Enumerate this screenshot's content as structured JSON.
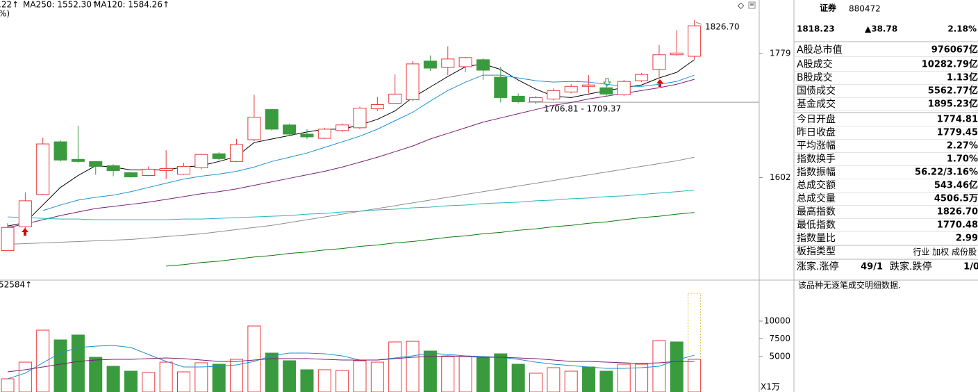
{
  "chart_data": [
    {
      "type": "candlestick",
      "legend": [
        {
          "text": ".22↑",
          "color": "#000000"
        },
        {
          "text": "MA250: 1552.30↑",
          "color": "#0a7a0a"
        },
        {
          "text": "MA120: 1584.26↑",
          "color": "#20b8c0"
        },
        {
          "text": "%)",
          "color": "#e8373b"
        }
      ],
      "categories": [
        null,
        null,
        null,
        null,
        null,
        null,
        null,
        null,
        null,
        null,
        null,
        null,
        null,
        null,
        null,
        null,
        null,
        null,
        null,
        null,
        null,
        null,
        null,
        null,
        null,
        null,
        null,
        null,
        null,
        null,
        null,
        null,
        null,
        null,
        null,
        null,
        null,
        null,
        null,
        null
      ],
      "open": [
        1498,
        1532,
        1578,
        1653,
        1628,
        1625,
        1619,
        1609,
        1605,
        1612,
        1607,
        1616,
        1636,
        1625,
        1656,
        1699,
        1677,
        1664,
        1658,
        1669,
        1673,
        1700,
        1708,
        1713,
        1768,
        1759,
        1760,
        1770,
        1745,
        1718,
        1710,
        1714,
        1724,
        1732,
        1730,
        1720,
        1740,
        1756,
        1777,
        1774.81
      ],
      "close": [
        1531,
        1569,
        1650,
        1627,
        1625,
        1618,
        1612,
        1603,
        1614,
        1615,
        1618,
        1635,
        1629,
        1649,
        1688,
        1671,
        1664,
        1660,
        1671,
        1677,
        1701,
        1706,
        1721,
        1764,
        1758,
        1771,
        1773,
        1755,
        1716,
        1710,
        1716,
        1726,
        1732,
        1734,
        1721,
        1739,
        1749,
        1777,
        1779.45,
        1818.23
      ],
      "high": [
        1537,
        1581,
        1659,
        1655,
        1676,
        1625,
        1621,
        1610,
        1618,
        1641,
        1623,
        1636,
        1638,
        1657,
        1720,
        1699,
        1679,
        1671,
        1673,
        1679,
        1703,
        1717,
        1749,
        1768,
        1776,
        1789,
        1774,
        1772,
        1760,
        1722,
        1718,
        1729,
        1735,
        1748,
        1736,
        1741,
        1751,
        1791,
        1812,
        1826.7
      ],
      "low": [
        1498,
        1529,
        1577,
        1625,
        1623,
        1606,
        1604,
        1602,
        1604,
        1600,
        1606,
        1614,
        1627,
        1624,
        1654,
        1669,
        1661,
        1657,
        1657,
        1667,
        1671,
        1697,
        1707,
        1711,
        1754,
        1748,
        1752,
        1741,
        1709,
        1708,
        1706.81,
        1712,
        1722,
        1722,
        1718,
        1718,
        1738,
        1743,
        1776,
        1770.48
      ],
      "up_color": "#e8373b",
      "down_color": "#3a9a3e",
      "lines": [
        {
          "color": "#000000",
          "values": [
            1533,
            1538,
            1563,
            1588,
            1605,
            1619,
            1617,
            1613,
            1613,
            1613,
            1617,
            1619,
            1625,
            1632,
            1652,
            1657,
            1662,
            1667,
            1671,
            1671,
            1677,
            1685,
            1697,
            1716,
            1731,
            1746,
            1760,
            1764,
            1756,
            1741,
            1728,
            1718,
            1716,
            1721,
            1726,
            1730,
            1734,
            1744,
            1752,
            1770
          ]
        },
        {
          "color": "#1e8fd0",
          "values": [
            null,
            null,
            1555,
            1563,
            1570,
            1574,
            1577,
            1582,
            1588,
            1594,
            1600,
            1604,
            1607,
            1611,
            1617,
            1625,
            1631,
            1637,
            1645,
            1653,
            1661,
            1671,
            1683,
            1695,
            1711,
            1726,
            1738,
            1748,
            1748,
            1744,
            1740,
            1738,
            1739,
            1738,
            1735,
            1732,
            1732,
            1735,
            1739,
            1748
          ]
        },
        {
          "color": "#7a1d7a",
          "values": [
            1531,
            1536,
            1542,
            1548,
            1553,
            1558,
            1561,
            1564,
            1567,
            1571,
            1575,
            1579,
            1582,
            1586,
            1591,
            1596,
            1601,
            1606,
            1611,
            1617,
            1624,
            1631,
            1639,
            1647,
            1657,
            1665,
            1673,
            1681,
            1687,
            1693,
            1699,
            1705,
            1709,
            1714,
            1718,
            1722,
            1726,
            1730,
            1735,
            1742
          ]
        },
        {
          "color": "#8c8c8c",
          "values": [
            1507,
            1508,
            1509,
            1510,
            1511,
            1512,
            1513,
            1514,
            1516,
            1518,
            1520,
            1522,
            1525,
            1528,
            1531,
            1534,
            1538,
            1542,
            1546,
            1550,
            1554,
            1558,
            1562,
            1566,
            1570,
            1574,
            1578,
            1582,
            1586,
            1590,
            1594,
            1598,
            1602,
            1606,
            1610,
            1614,
            1618,
            1622,
            1626,
            1631
          ]
        },
        {
          "color": "#20b8c0",
          "values": [
            1546,
            1545,
            1544,
            1543,
            1543,
            1542,
            1542,
            1542,
            1542,
            1542,
            1543,
            1543,
            1544,
            1545,
            1546,
            1547,
            1548,
            1550,
            1551,
            1553,
            1554,
            1556,
            1557,
            1559,
            1560,
            1562,
            1563,
            1565,
            1566,
            1567,
            1569,
            1570,
            1572,
            1573,
            1575,
            1576,
            1578,
            1580,
            1582,
            1584.26
          ]
        },
        {
          "color": "#0a7a0a",
          "values": [
            null,
            null,
            null,
            null,
            null,
            null,
            null,
            null,
            null,
            1476,
            1478,
            1481,
            1483,
            1486,
            1489,
            1491,
            1494,
            1496,
            1499,
            1501,
            1504,
            1506,
            1509,
            1511,
            1514,
            1517,
            1519,
            1522,
            1524,
            1527,
            1529,
            1532,
            1534,
            1537,
            1539,
            1542,
            1545,
            1547,
            1550,
            1552.3
          ]
        }
      ],
      "price_line": 1709.37,
      "annotations": [
        "1826.70",
        "1706.81 - 1709.37"
      ],
      "ylim": [
        1459,
        1855
      ],
      "yticks": [
        1602,
        1779
      ]
    },
    {
      "type": "bar",
      "legend": [
        {
          "text": "52584↑",
          "color": "#e8373b"
        }
      ],
      "categories": [
        null,
        null,
        null,
        null,
        null,
        null,
        null,
        null,
        null,
        null,
        null,
        null,
        null,
        null,
        null,
        null,
        null,
        null,
        null,
        null,
        null,
        null,
        null,
        null,
        null,
        null,
        null,
        null,
        null,
        null,
        null,
        null,
        null,
        null,
        null,
        null,
        null,
        null,
        null,
        null
      ],
      "values": [
        1860,
        4210,
        8720,
        7350,
        8040,
        4900,
        3630,
        2940,
        2740,
        4210,
        2840,
        4120,
        3920,
        4610,
        9310,
        5490,
        4410,
        3140,
        3140,
        3040,
        4410,
        4210,
        7060,
        7150,
        5780,
        5000,
        5000,
        4900,
        5390,
        3920,
        2650,
        3430,
        2940,
        3530,
        2940,
        3920,
        3920,
        7250,
        7060,
        4610
      ],
      "colors": [
        "#e8373b",
        "#e8373b",
        "#e8373b",
        "#3a9a3e",
        "#3a9a3e",
        "#3a9a3e",
        "#3a9a3e",
        "#3a9a3e",
        "#e8373b",
        "#e8373b",
        "#e8373b",
        "#e8373b",
        "#3a9a3e",
        "#e8373b",
        "#e8373b",
        "#3a9a3e",
        "#3a9a3e",
        "#3a9a3e",
        "#e8373b",
        "#e8373b",
        "#e8373b",
        "#e8373b",
        "#e8373b",
        "#e8373b",
        "#3a9a3e",
        "#e8373b",
        "#e8373b",
        "#3a9a3e",
        "#3a9a3e",
        "#3a9a3e",
        "#e8373b",
        "#e8373b",
        "#e8373b",
        "#3a9a3e",
        "#3a9a3e",
        "#e8373b",
        "#e8373b",
        "#e8373b",
        "#3a9a3e",
        "#e8373b"
      ],
      "hollow_color": "#e8373b",
      "forecast": 13900,
      "forecast_color": "#d4c23a",
      "lines": [
        {
          "color": "#1e8fd0",
          "values": [
            1860,
            2650,
            4120,
            5490,
            6270,
            6470,
            6570,
            6270,
            5290,
            4310,
            3530,
            3530,
            3630,
            3820,
            4310,
            5100,
            5490,
            5490,
            5390,
            5100,
            4510,
            4510,
            4800,
            5100,
            5490,
            5290,
            5100,
            5000,
            4900,
            4610,
            4210,
            3920,
            3720,
            3530,
            3330,
            3330,
            3430,
            3630,
            4510,
            5190
          ]
        },
        {
          "color": "#7a1d7a",
          "values": [
            2840,
            3140,
            3530,
            3920,
            4310,
            4510,
            4610,
            4610,
            4700,
            4800,
            4700,
            4510,
            4310,
            4310,
            4510,
            4700,
            4700,
            4700,
            4610,
            4510,
            4510,
            4510,
            4700,
            4900,
            5000,
            5100,
            5000,
            4900,
            4900,
            4800,
            4700,
            4510,
            4310,
            4310,
            4210,
            4120,
            4020,
            4120,
            4310,
            4310
          ]
        }
      ],
      "unit_label": "X1万",
      "ylim": [
        0,
        15780
      ],
      "yticks": [
        5000,
        7500,
        10000
      ]
    }
  ],
  "panel": {
    "title": "证券",
    "code": "880472",
    "price": "1818.23",
    "change": "▲38.78",
    "change_pct": "2.18%",
    "rows": [
      [
        "A股总市值",
        "976067亿"
      ],
      [
        "Α股成交",
        "10282.79亿"
      ],
      [
        "Β股成交",
        "1.13亿"
      ],
      [
        "国债成交",
        "5562.77亿"
      ],
      [
        "基金成交",
        "1895.23亿"
      ],
      [
        "今日开盘",
        "1774.81"
      ],
      [
        "昨日收盘",
        "1779.45"
      ],
      [
        "平均涨幅",
        "2.27%"
      ],
      [
        "指数换手",
        "1.70%"
      ],
      [
        "指数振幅",
        "56.22/3.16%"
      ],
      [
        "总成交额",
        "543.46亿"
      ],
      [
        "总成交量",
        "4506.5万"
      ],
      [
        "最高指数",
        "1826.70"
      ],
      [
        "最低指数",
        "1770.48"
      ],
      [
        "指数量比",
        "2.99"
      ]
    ],
    "board_type": [
      "板指类型",
      "行业 加权 成份股"
    ],
    "breadth": [
      "涨家.涨停",
      "49/1",
      "跌家.跌停",
      "1/0"
    ],
    "note": "该品种无逐笔成交明细数据."
  }
}
